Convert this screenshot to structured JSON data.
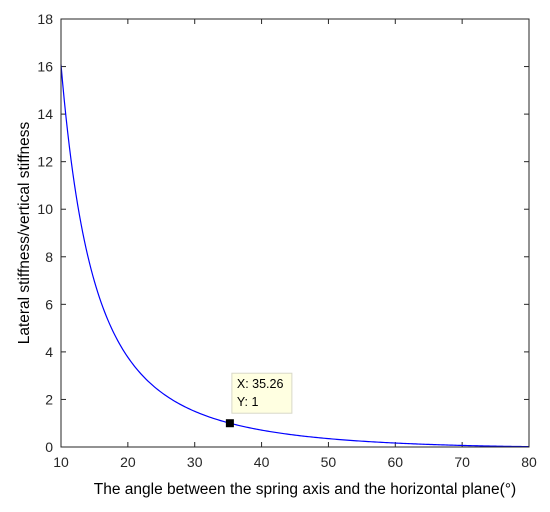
{
  "chart_data": {
    "type": "line",
    "title": "",
    "xlabel": "The angle between the spring axis and the horizontal plane(°)",
    "ylabel": "Lateral stiffness/vertical stiffness",
    "xlim": [
      10,
      80
    ],
    "ylim": [
      0,
      18
    ],
    "x_ticks": [
      10,
      20,
      30,
      40,
      50,
      60,
      70,
      80
    ],
    "y_ticks": [
      0,
      2,
      4,
      6,
      8,
      10,
      12,
      14,
      16,
      18
    ],
    "grid": false,
    "legend": "none",
    "line_color": "#0000ff",
    "series": [
      {
        "x": [
          10,
          11,
          12,
          13,
          14,
          15,
          16,
          17,
          18,
          19,
          20,
          22,
          24,
          26,
          28,
          30,
          32,
          34,
          35.26,
          36,
          38,
          40,
          42,
          44,
          46,
          48,
          50,
          52,
          54,
          56,
          58,
          60,
          62,
          64,
          66,
          68,
          70,
          72,
          74,
          76,
          78,
          80
        ],
        "y": [
          16.1,
          13.2,
          11.05,
          9.35,
          8.0,
          6.9,
          6.02,
          5.27,
          4.65,
          4.12,
          3.66,
          2.92,
          2.36,
          1.93,
          1.6,
          1.33,
          1.11,
          0.94,
          1.0,
          0.82,
          0.7,
          0.6,
          0.52,
          0.44,
          0.38,
          0.33,
          0.28,
          0.24,
          0.2,
          0.17,
          0.14,
          0.12,
          0.1,
          0.08,
          0.065,
          0.05,
          0.04,
          0.03,
          0.02,
          0.012,
          0.006,
          0.0
        ]
      }
    ],
    "annotations": [
      {
        "x": 35.26,
        "y": 1,
        "x_label": "X: 35.26",
        "y_label": "Y: 1"
      }
    ]
  }
}
